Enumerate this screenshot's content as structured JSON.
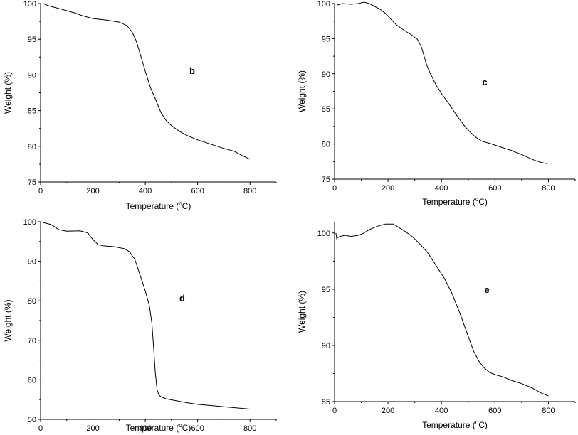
{
  "chart_data": [
    {
      "type": "line",
      "panel_label": "b",
      "xlabel": "Temperature (°C)",
      "ylabel": "Weight (%)",
      "xlim": [
        0,
        900
      ],
      "ylim": [
        75,
        100
      ],
      "xticks": [
        0,
        200,
        400,
        600,
        800
      ],
      "yticks": [
        75,
        80,
        85,
        90,
        95,
        100
      ],
      "series": [
        {
          "name": "b",
          "x": [
            10,
            30,
            60,
            100,
            130,
            160,
            200,
            250,
            300,
            330,
            350,
            365,
            380,
            400,
            420,
            440,
            460,
            480,
            500,
            530,
            560,
            600,
            650,
            700,
            740,
            770,
            800
          ],
          "y": [
            100,
            99.7,
            99.4,
            99.0,
            98.7,
            98.3,
            97.9,
            97.7,
            97.4,
            96.9,
            96.0,
            94.8,
            93.0,
            90.5,
            88.2,
            86.5,
            84.7,
            83.6,
            82.9,
            82.1,
            81.5,
            80.9,
            80.3,
            79.7,
            79.3,
            78.7,
            78.2
          ]
        }
      ]
    },
    {
      "type": "line",
      "panel_label": "c",
      "xlabel": "Temperature (°C)",
      "ylabel": "Weight (%)",
      "xlim": [
        0,
        900
      ],
      "ylim": [
        75,
        100
      ],
      "xticks": [
        0,
        200,
        400,
        600,
        800
      ],
      "yticks": [
        75,
        80,
        85,
        90,
        95,
        100
      ],
      "series": [
        {
          "name": "c",
          "x": [
            10,
            30,
            60,
            90,
            110,
            130,
            150,
            170,
            190,
            210,
            230,
            260,
            290,
            310,
            325,
            335,
            345,
            360,
            380,
            400,
            430,
            460,
            490,
            520,
            550,
            580,
            620,
            660,
            700,
            740,
            770,
            795
          ],
          "y": [
            99.8,
            100.0,
            99.9,
            100.0,
            100.2,
            100.0,
            99.6,
            99.2,
            98.6,
            97.8,
            97.0,
            96.2,
            95.5,
            94.9,
            93.8,
            92.5,
            91.2,
            89.9,
            88.4,
            87.2,
            85.6,
            83.9,
            82.4,
            81.2,
            80.4,
            80.1,
            79.6,
            79.1,
            78.5,
            77.8,
            77.4,
            77.2
          ]
        }
      ]
    },
    {
      "type": "line",
      "panel_label": "d",
      "xlabel": "Temperature (°C)",
      "ylabel": "Weight (%)",
      "xlim": [
        0,
        900
      ],
      "ylim": [
        50,
        100
      ],
      "xticks": [
        0,
        200,
        400,
        600,
        800
      ],
      "yticks": [
        50,
        60,
        70,
        80,
        90,
        100
      ],
      "series": [
        {
          "name": "d",
          "x": [
            10,
            40,
            70,
            100,
            150,
            180,
            200,
            220,
            240,
            280,
            320,
            340,
            360,
            380,
            400,
            415,
            425,
            432,
            438,
            445,
            452,
            460,
            480,
            520,
            560,
            600,
            650,
            700,
            750,
            800
          ],
          "y": [
            99.8,
            99.3,
            98.0,
            97.6,
            97.7,
            97.2,
            95.5,
            94.2,
            93.9,
            93.7,
            93.2,
            92.4,
            90.5,
            86.5,
            82.5,
            79.0,
            74.5,
            68.0,
            62.0,
            57.5,
            56.2,
            55.7,
            55.2,
            54.7,
            54.2,
            53.8,
            53.5,
            53.2,
            52.9,
            52.6
          ]
        }
      ]
    },
    {
      "type": "line",
      "panel_label": "e",
      "xlabel": "Temperature (°C)",
      "ylabel": "Weight (%)",
      "xlim": [
        0,
        900
      ],
      "ylim": [
        85,
        101
      ],
      "xticks": [
        0,
        200,
        400,
        600,
        800
      ],
      "yticks": [
        85,
        90,
        95,
        100
      ],
      "series": [
        {
          "name": "e",
          "x": [
            5,
            8,
            12,
            20,
            40,
            60,
            90,
            110,
            130,
            160,
            190,
            220,
            240,
            260,
            290,
            320,
            350,
            380,
            410,
            440,
            470,
            500,
            520,
            540,
            560,
            580,
            600,
            630,
            660,
            700,
            740,
            770,
            800
          ],
          "y": [
            100.0,
            99.5,
            99.6,
            99.7,
            99.8,
            99.7,
            99.8,
            100.0,
            100.3,
            100.6,
            100.8,
            100.8,
            100.5,
            100.2,
            99.7,
            99.0,
            98.2,
            97.1,
            96.0,
            94.6,
            92.8,
            90.8,
            89.5,
            88.6,
            88.0,
            87.6,
            87.4,
            87.2,
            86.9,
            86.6,
            86.2,
            85.8,
            85.5
          ]
        }
      ]
    }
  ]
}
